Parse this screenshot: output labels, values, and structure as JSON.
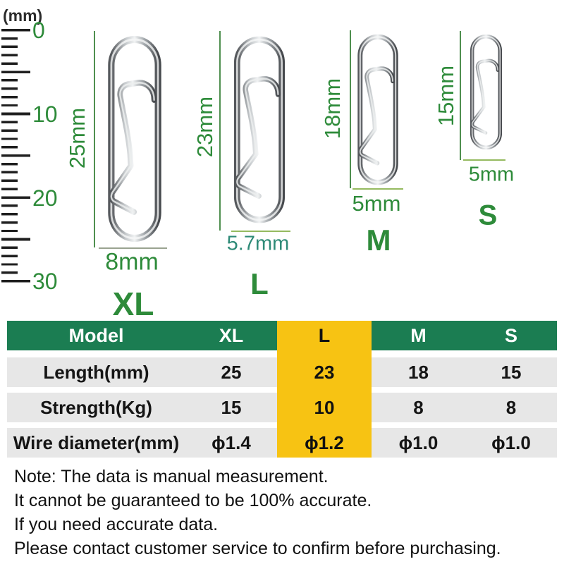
{
  "ruler": {
    "unit_label": "(mm)",
    "tick_labels": [
      "0",
      "10",
      "20",
      "30"
    ]
  },
  "clips": [
    {
      "size_label": "XL",
      "length_label": "25mm",
      "width_label": "8mm"
    },
    {
      "size_label": "L",
      "length_label": "23mm",
      "width_label": "5.7mm"
    },
    {
      "size_label": "M",
      "length_label": "18mm",
      "width_label": "5mm"
    },
    {
      "size_label": "S",
      "length_label": "15mm",
      "width_label": "5mm"
    }
  ],
  "table": {
    "headers": [
      "Model",
      "XL",
      "L",
      "M",
      "S"
    ],
    "highlighted_column": "L",
    "rows": [
      {
        "label": "Length(mm)",
        "values": [
          "25",
          "23",
          "18",
          "15"
        ]
      },
      {
        "label": "Strength(Kg)",
        "values": [
          "15",
          "10",
          "8",
          "8"
        ]
      },
      {
        "label": "Wire diameter(mm)",
        "values": [
          "ϕ1.4",
          "ϕ1.2",
          "ϕ1.0",
          "ϕ1.0"
        ]
      }
    ]
  },
  "note": {
    "lines": [
      "Note: The data is manual measurement.",
      "It cannot be guaranteed to be 100% accurate.",
      "If you need accurate data.",
      "Please contact customer service to confirm before purchasing."
    ]
  },
  "colors": {
    "header_green": "#1B7D52",
    "highlight_yellow": "#F7C313",
    "label_green": "#2E8B3A",
    "teal_green": "#2F8B78",
    "row_gray": "#E7E7E7",
    "measure_line_green": "#4F8F4F"
  }
}
